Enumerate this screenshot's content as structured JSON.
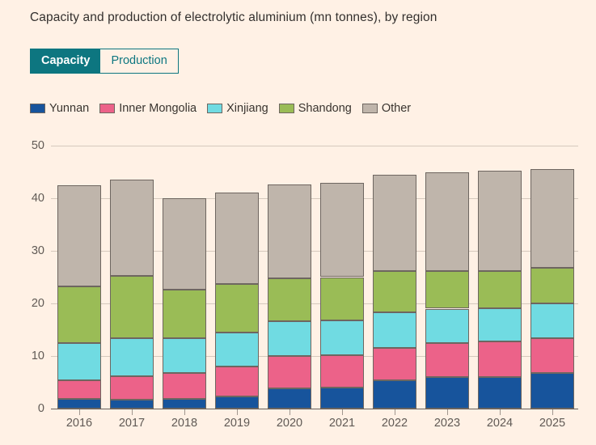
{
  "page": {
    "background_color": "#fff1e5",
    "accent_color": "#0d7680"
  },
  "header": {
    "title": "Capacity and production of electrolytic aluminium (mn tonnes), by region"
  },
  "tabs": [
    {
      "label": "Capacity",
      "active": true
    },
    {
      "label": "Production",
      "active": false
    }
  ],
  "chart_data": {
    "type": "bar",
    "stacked": true,
    "title": "Capacity and production of electrolytic aluminium (mn tonnes), by region",
    "xlabel": "",
    "ylabel": "",
    "ylim": [
      0,
      50
    ],
    "yticks": [
      0,
      10,
      20,
      30,
      40,
      50
    ],
    "grid": true,
    "legend_position": "top",
    "categories": [
      "2016",
      "2017",
      "2018",
      "2019",
      "2020",
      "2021",
      "2022",
      "2023",
      "2024",
      "2025"
    ],
    "series": [
      {
        "name": "Yunnan",
        "color": "#17549c",
        "values": [
          1.8,
          1.7,
          1.8,
          2.3,
          3.8,
          4.0,
          5.4,
          6.0,
          6.0,
          6.7
        ]
      },
      {
        "name": "Inner Mongolia",
        "color": "#ec6289",
        "values": [
          3.6,
          4.4,
          5.0,
          5.7,
          6.2,
          6.2,
          6.2,
          6.5,
          6.7,
          6.7
        ]
      },
      {
        "name": "Xinjiang",
        "color": "#70dbe2",
        "values": [
          7.1,
          7.3,
          6.6,
          6.5,
          6.6,
          6.6,
          6.7,
          6.5,
          6.4,
          6.6
        ]
      },
      {
        "name": "Shandong",
        "color": "#9abc56",
        "values": [
          10.7,
          11.8,
          9.2,
          9.2,
          8.2,
          8.2,
          7.8,
          7.1,
          7.1,
          6.7
        ]
      },
      {
        "name": "Other",
        "color": "#bfb5ab",
        "values": [
          19.3,
          18.3,
          17.4,
          17.4,
          17.8,
          17.9,
          18.4,
          18.8,
          19.0,
          18.8
        ]
      }
    ],
    "totals": [
      42.5,
      43.5,
      40.0,
      41.1,
      42.6,
      42.9,
      44.5,
      44.9,
      45.2,
      45.5
    ]
  }
}
